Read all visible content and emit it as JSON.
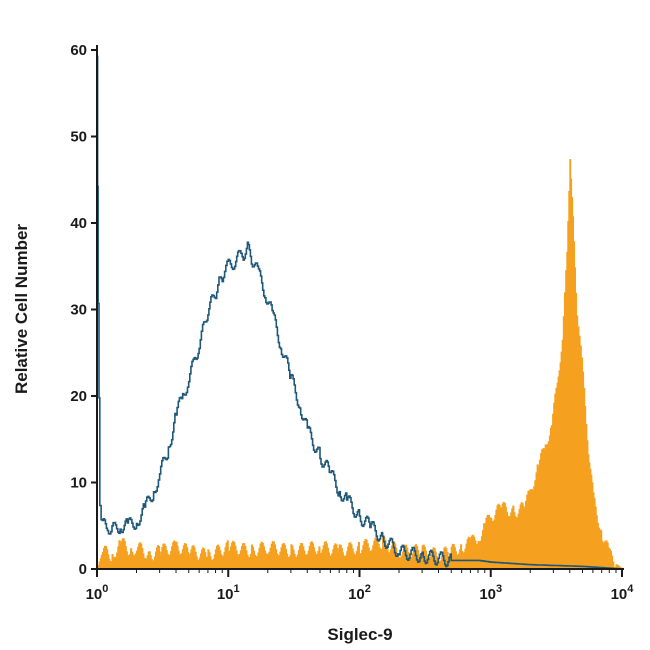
{
  "chart_data": {
    "type": "area",
    "xlabel": "Siglec-9",
    "ylabel": "Relative Cell Number",
    "xscale": "log",
    "xlim": [
      1,
      10000
    ],
    "ylim": [
      0,
      60
    ],
    "x_tick_labels": [
      {
        "value": 1,
        "base": "10",
        "exp": "0"
      },
      {
        "value": 10,
        "base": "10",
        "exp": "1"
      },
      {
        "value": 100,
        "base": "10",
        "exp": "2"
      },
      {
        "value": 1000,
        "base": "10",
        "exp": "3"
      },
      {
        "value": 10000,
        "base": "10",
        "exp": "4"
      }
    ],
    "y_ticks": [
      0,
      10,
      20,
      30,
      40,
      50,
      60
    ],
    "grid": false,
    "legend": "none",
    "series": [
      {
        "style": "outline",
        "color": "#1f5778",
        "x": [
          1.0,
          1.02,
          1.05,
          1.1,
          1.2,
          1.3,
          1.5,
          1.7,
          2.0,
          2.3,
          2.7,
          3.0,
          3.5,
          4.0,
          4.5,
          5.0,
          5.5,
          6.0,
          6.5,
          7.0,
          7.5,
          8.0,
          8.5,
          9.0,
          10.0,
          11.0,
          12.0,
          13.0,
          14.0,
          15.0,
          17.0,
          19.0,
          22.0,
          25.0,
          30.0,
          35.0,
          40.0,
          50.0,
          60.0,
          70.0,
          80.0,
          100.0,
          120.0,
          150.0,
          200.0,
          300.0,
          500.0,
          800.0,
          1000.0,
          2000.0,
          5000.0,
          10000.0
        ],
        "y": [
          60,
          30,
          8,
          5,
          5,
          4.5,
          5,
          5,
          5.5,
          7,
          9,
          11,
          14,
          18,
          20,
          22,
          24,
          26,
          28,
          30,
          31,
          32,
          33,
          34,
          35,
          35.5,
          36,
          36.5,
          37,
          36,
          34,
          32,
          29,
          26,
          22,
          19,
          16,
          13,
          11,
          9,
          8,
          6,
          5,
          3.5,
          2,
          1.5,
          1,
          1,
          0.8,
          0.5,
          0.3,
          0
        ]
      },
      {
        "style": "filled",
        "color": "#f5a01e",
        "x": [
          1.0,
          1.1,
          1.3,
          1.5,
          1.8,
          2.0,
          2.5,
          3.0,
          4.0,
          5.0,
          7.0,
          10.0,
          15.0,
          20.0,
          30.0,
          50.0,
          70.0,
          100.0,
          150.0,
          200.0,
          300.0,
          400.0,
          500.0,
          600.0,
          700.0,
          800.0,
          900.0,
          1000.0,
          1200.0,
          1500.0,
          1800.0,
          2000.0,
          2300.0,
          2600.0,
          2900.0,
          3200.0,
          3500.0,
          3800.0,
          4000.0,
          4200.0,
          4500.0,
          5000.0,
          5500.0,
          6000.0,
          7000.0,
          8000.0,
          9000.0,
          10000.0
        ],
        "y": [
          0,
          2,
          1.5,
          3,
          2,
          2.5,
          1.5,
          2,
          2.5,
          2,
          1.5,
          2.5,
          2,
          2.5,
          2,
          2.5,
          2,
          2.5,
          3,
          2,
          2,
          1.5,
          2,
          2.5,
          3,
          3.5,
          5,
          6,
          7,
          6.5,
          7,
          9,
          12,
          14,
          17,
          21,
          27,
          36,
          48,
          40,
          30,
          22,
          14,
          8,
          4,
          1.5,
          0.5,
          0
        ]
      }
    ]
  }
}
